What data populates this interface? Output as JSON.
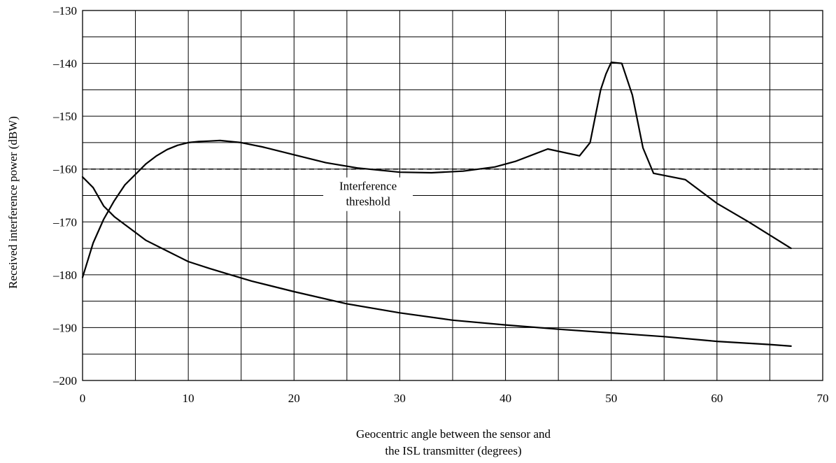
{
  "chart_data": {
    "type": "line",
    "title": "",
    "xlabel": [
      "Geocentric angle between the sensor and",
      "the ISL transmitter (degrees)"
    ],
    "ylabel": "Received interference power (dBW)",
    "xlim": [
      0,
      70
    ],
    "ylim": [
      -200,
      -130
    ],
    "x_ticks": [
      0,
      10,
      20,
      30,
      40,
      50,
      60,
      70
    ],
    "x_tick_labels": [
      "0",
      "10",
      "20",
      "30",
      "40",
      "50",
      "60",
      "70"
    ],
    "y_ticks": [
      -130,
      -140,
      -150,
      -160,
      -170,
      -180,
      -190,
      -200
    ],
    "y_tick_labels": [
      "–130",
      "–140",
      "–150",
      "–160",
      "–170",
      "–180",
      "–190",
      "–200"
    ],
    "x_grid_step": 5,
    "y_grid_step": 5,
    "grid": true,
    "threshold": {
      "value": -160,
      "style": "dashed"
    },
    "annotation": {
      "lines": [
        "Interference",
        "threshold"
      ],
      "x": 27,
      "y": -164.5
    },
    "series": [
      {
        "x": [
          0,
          1,
          2,
          3,
          4,
          5,
          6,
          7,
          8,
          9,
          10,
          11,
          12,
          13,
          15,
          17,
          20,
          23,
          26,
          30,
          33,
          36,
          39,
          41,
          44,
          47,
          48,
          48.5,
          49,
          49.5,
          50,
          51,
          52,
          53,
          54,
          57,
          60,
          63,
          65,
          67
        ],
        "y": [
          -180.5,
          -174,
          -169.5,
          -166,
          -163,
          -161,
          -159,
          -157.5,
          -156.3,
          -155.5,
          -155,
          -154.8,
          -154.7,
          -154.6,
          -155,
          -155.8,
          -157.3,
          -158.8,
          -159.8,
          -160.6,
          -160.7,
          -160.4,
          -159.6,
          -158.5,
          -156.2,
          -157.5,
          -155,
          -150,
          -145,
          -142,
          -139.8,
          -140,
          -146,
          -156,
          -160.8,
          -162,
          -166.5,
          -170,
          -172.5,
          -175
        ]
      },
      {
        "x": [
          0,
          1,
          2,
          3,
          4,
          5,
          6,
          8,
          10,
          12,
          14,
          16,
          20,
          25,
          30,
          35,
          40,
          45,
          50,
          55,
          60,
          65,
          67
        ],
        "y": [
          -161.5,
          -163.5,
          -167,
          -169,
          -170.5,
          -172,
          -173.5,
          -175.5,
          -177.5,
          -178.8,
          -180,
          -181.2,
          -183.2,
          -185.5,
          -187.2,
          -188.6,
          -189.5,
          -190.3,
          -191,
          -191.7,
          -192.6,
          -193.2,
          -193.5
        ]
      }
    ]
  }
}
